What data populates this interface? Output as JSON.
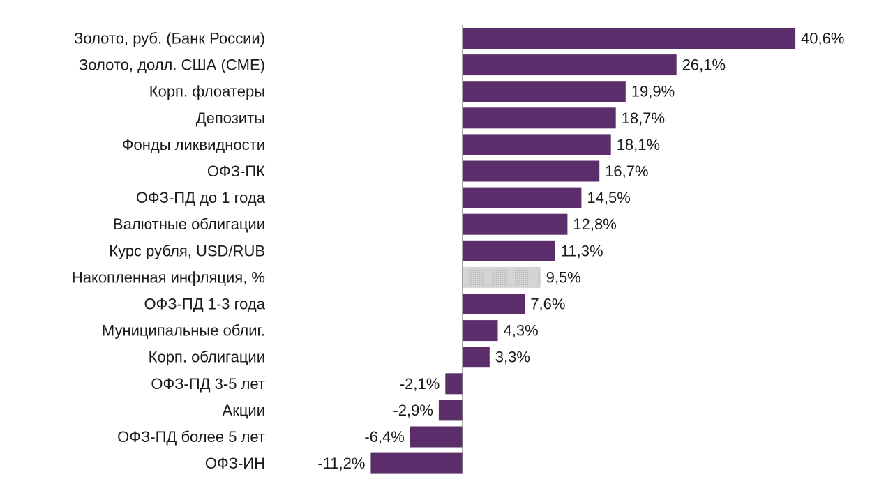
{
  "chart_data": {
    "type": "bar",
    "orientation": "horizontal",
    "title": "",
    "xlabel": "",
    "ylabel": "",
    "xlim": [
      -11.2,
      40.6
    ],
    "grid": false,
    "legend": "none",
    "colors": {
      "primary": "#5b2d6b",
      "highlight": "#c8c8c8",
      "zero_axis": "#888888",
      "text": "#1a1a1a"
    },
    "categories": [
      "Золото, руб. (Банк России)",
      "Золото, долл. США (CME)",
      "Корп. флоатеры",
      "Депозиты",
      "Фонды ликвидности",
      "ОФЗ-ПК",
      "ОФЗ-ПД до 1 года",
      "Валютные облигации",
      "Курс рубля, USD/RUB",
      "Накопленная инфляция, %",
      "ОФЗ-ПД 1-3 года",
      "Муниципальные облиг.",
      "Корп. облигации",
      "ОФЗ-ПД 3-5 лет",
      "Акции",
      "ОФЗ-ПД более 5 лет",
      "ОФЗ-ИН"
    ],
    "values": [
      40.6,
      26.1,
      19.9,
      18.7,
      18.1,
      16.7,
      14.5,
      12.8,
      11.3,
      9.5,
      7.6,
      4.3,
      3.3,
      -2.1,
      -2.9,
      -6.4,
      -11.2
    ],
    "value_labels": [
      "40,6%",
      "26,1%",
      "19,9%",
      "18,7%",
      "18,1%",
      "16,7%",
      "14,5%",
      "12,8%",
      "11,3%",
      "9,5%",
      "7,6%",
      "4,3%",
      "3,3%",
      "-2,1%",
      "-2,9%",
      "-6,4%",
      "-11,2%"
    ],
    "highlighted_category": "Накопленная инфляция, %"
  }
}
